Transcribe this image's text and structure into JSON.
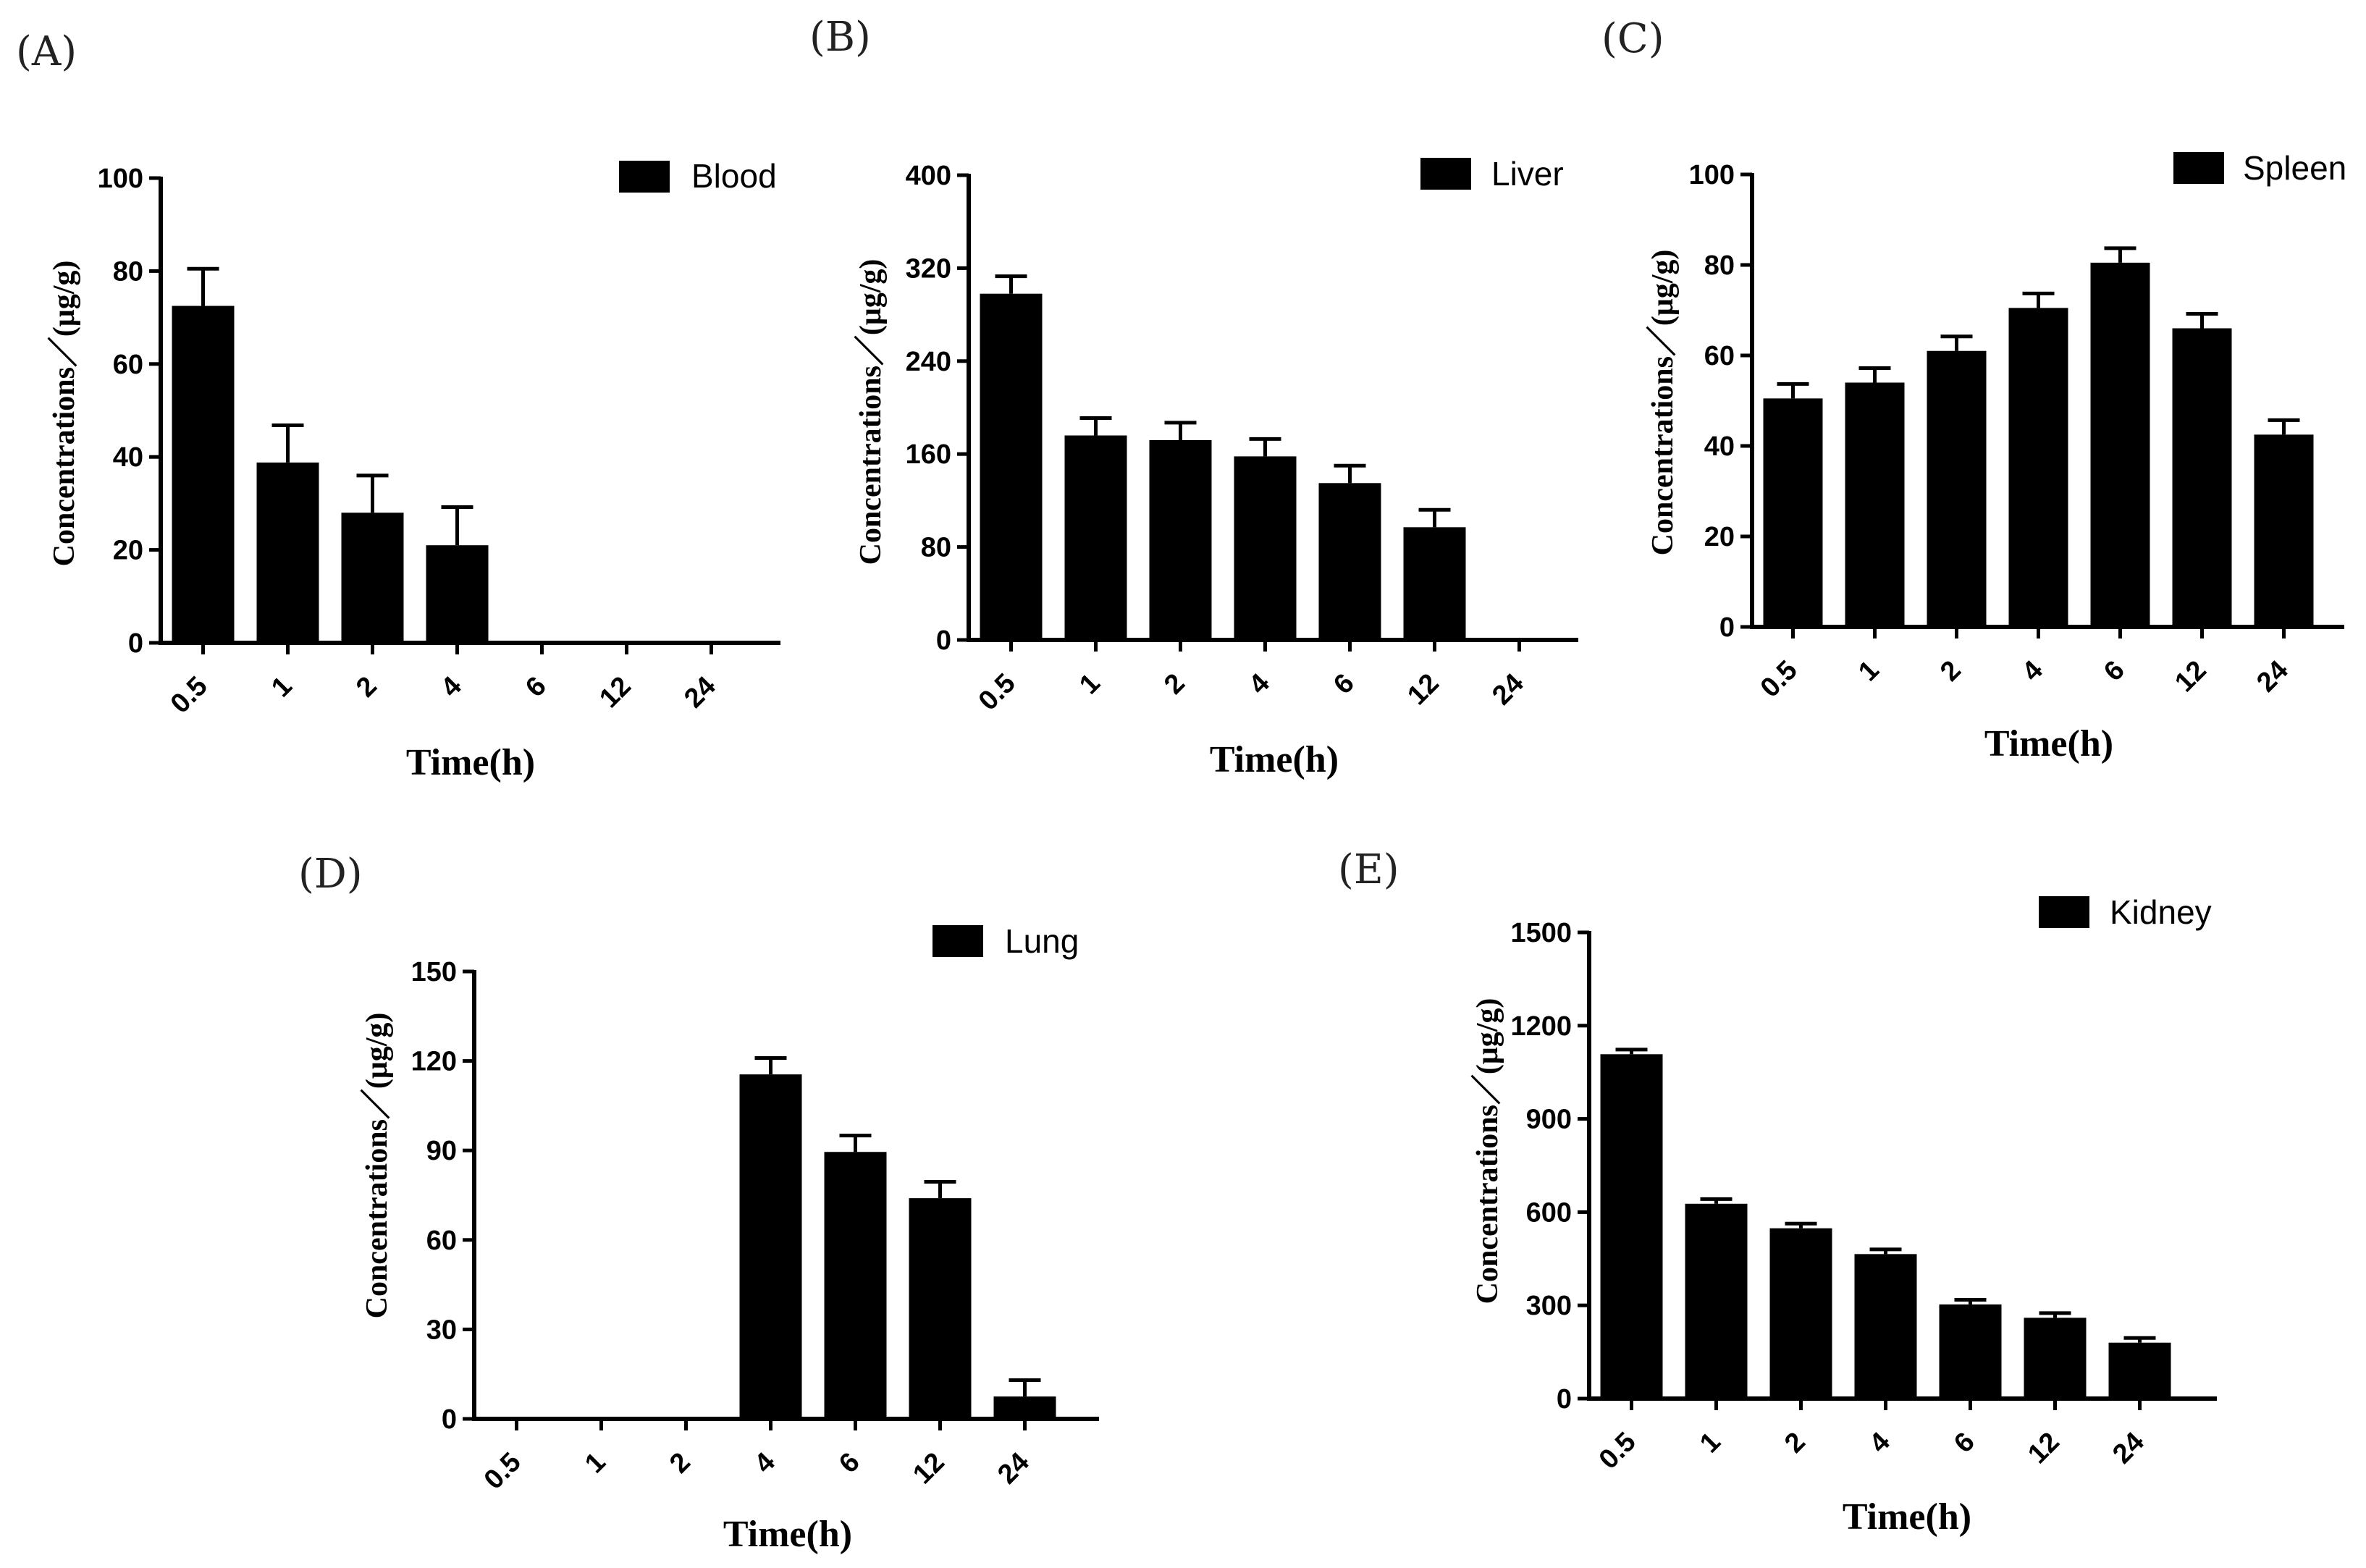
{
  "chart_data": [
    {
      "panel": "(A)",
      "type": "bar",
      "categories": [
        "0.5",
        "1",
        "2",
        "4",
        "6",
        "12",
        "24"
      ],
      "series": [
        {
          "name": "Blood",
          "values": [
            72.5,
            38.8,
            28.0,
            21.0,
            0,
            0,
            0
          ],
          "errors": [
            8.0,
            8.0,
            8.0,
            8.2,
            0,
            0,
            0
          ]
        }
      ],
      "ylim": [
        0,
        100
      ],
      "yticks": [
        0,
        20,
        40,
        60,
        80,
        100
      ],
      "xlabel": "Time(h)",
      "ylabel": "Concentrations／(μg/g)",
      "legend": "top-right",
      "grid": false
    },
    {
      "panel": "(B)",
      "type": "bar",
      "categories": [
        "0.5",
        "1",
        "2",
        "4",
        "6",
        "12",
        "24"
      ],
      "series": [
        {
          "name": "Liver",
          "values": [
            298,
            176,
            172,
            158,
            135,
            97,
            0
          ],
          "errors": [
            15,
            15,
            15,
            15,
            15,
            15,
            0
          ]
        }
      ],
      "ylim": [
        0,
        400
      ],
      "yticks": [
        0,
        80,
        160,
        240,
        320,
        400
      ],
      "xlabel": "Time(h)",
      "ylabel": "Concentrations／(μg/g)",
      "legend": "top-right",
      "grid": false
    },
    {
      "panel": "(C)",
      "type": "bar",
      "categories": [
        "0.5",
        "1",
        "2",
        "4",
        "6",
        "12",
        "24"
      ],
      "series": [
        {
          "name": "Spleen",
          "values": [
            50.5,
            54.0,
            61.0,
            70.5,
            80.5,
            66.0,
            42.5
          ],
          "errors": [
            3.2,
            3.2,
            3.2,
            3.2,
            3.2,
            3.2,
            3.2
          ]
        }
      ],
      "ylim": [
        0,
        100
      ],
      "yticks": [
        0,
        20,
        40,
        60,
        80,
        100
      ],
      "xlabel": "Time(h)",
      "ylabel": "Concentrations／(μg/g)",
      "legend": "top-right",
      "grid": false
    },
    {
      "panel": "(D)",
      "type": "bar",
      "categories": [
        "0.5",
        "1",
        "2",
        "4",
        "6",
        "12",
        "24"
      ],
      "series": [
        {
          "name": "Lung",
          "values": [
            0,
            0,
            0,
            115.5,
            89.5,
            74.0,
            7.5
          ],
          "errors": [
            0,
            0,
            0,
            5.5,
            5.5,
            5.5,
            5.5
          ]
        }
      ],
      "ylim": [
        0,
        150
      ],
      "yticks": [
        0,
        30,
        60,
        90,
        120,
        150
      ],
      "xlabel": "Time(h)",
      "ylabel": "Concentrations／(μg/g)",
      "legend": "top-right",
      "grid": false
    },
    {
      "panel": "(E)",
      "type": "bar",
      "categories": [
        "0.5",
        "1",
        "2",
        "4",
        "6",
        "12",
        "24"
      ],
      "series": [
        {
          "name": "Kidney",
          "values": [
            1108,
            627,
            548,
            465,
            303,
            260,
            180
          ],
          "errors": [
            15,
            15,
            15,
            15,
            15,
            15,
            15
          ]
        }
      ],
      "ylim": [
        0,
        1500
      ],
      "yticks": [
        0,
        300,
        600,
        900,
        1200,
        1500
      ],
      "xlabel": "Time(h)",
      "ylabel": "Concentrations／(μg/g)",
      "legend": "top-right",
      "grid": false
    }
  ],
  "colors": {
    "bar": "#000000",
    "axis": "#000000",
    "background": "#ffffff"
  }
}
